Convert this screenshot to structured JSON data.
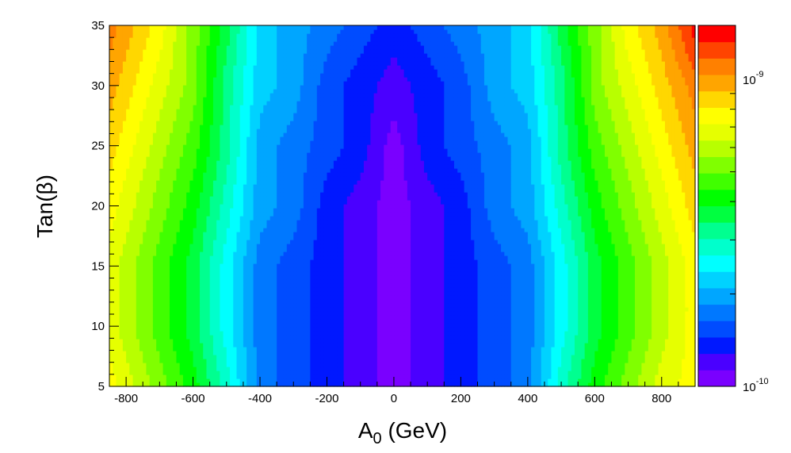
{
  "chart_data": {
    "type": "heatmap",
    "subtype": "filled-contour",
    "xlabel": {
      "base": "A",
      "sub": "0",
      "rest": " (GeV)"
    },
    "ylabel": "Tan(β)",
    "xlim": [
      -850,
      900
    ],
    "ylim": [
      5,
      35
    ],
    "x_ticks": [
      "-800",
      "-600",
      "-400",
      "-200",
      "0",
      "200",
      "400",
      "600",
      "800"
    ],
    "y_ticks": [
      "5",
      "10",
      "15",
      "20",
      "25",
      "30",
      "35"
    ],
    "colorbar": {
      "scale": "log",
      "range": [
        1e-10,
        1.5e-09
      ],
      "labels": [
        {
          "value": 1e-09,
          "base": "10",
          "exp": "-9"
        },
        {
          "value": 1e-10,
          "base": "10",
          "exp": "-10"
        }
      ],
      "colors": [
        "#7a00ff",
        "#4a00ff",
        "#0018ff",
        "#004cff",
        "#0078ff",
        "#00a6ff",
        "#00d2ff",
        "#00ffff",
        "#00ffcc",
        "#00ff90",
        "#00ff40",
        "#00ff00",
        "#40ff00",
        "#80ff00",
        "#b8ff00",
        "#e6ff00",
        "#ffff00",
        "#ffd700",
        "#ffa500",
        "#ff8000",
        "#ff4400",
        "#ff0000"
      ]
    },
    "x": [
      -850,
      -800,
      -700,
      -600,
      -500,
      -400,
      -300,
      -200,
      -100,
      0,
      100,
      200,
      300,
      400,
      500,
      600,
      700,
      800,
      900
    ],
    "y": [
      5,
      10,
      15,
      20,
      25,
      30,
      35
    ],
    "z_level_index": [
      [
        16,
        15,
        13,
        11,
        8,
        4,
        3,
        2,
        1,
        0,
        1,
        2,
        3,
        4,
        8,
        11,
        13,
        15,
        16
      ],
      [
        15,
        14,
        12,
        10,
        7,
        4,
        3,
        2,
        1,
        0,
        1,
        2,
        3,
        4,
        7,
        10,
        12,
        14,
        16
      ],
      [
        15,
        14,
        12,
        10,
        7,
        4,
        3,
        2,
        1,
        0,
        1,
        2,
        3,
        4,
        7,
        10,
        12,
        14,
        16
      ],
      [
        16,
        15,
        13,
        11,
        8,
        5,
        4,
        2,
        1,
        0,
        1,
        2,
        4,
        5,
        8,
        11,
        13,
        15,
        17
      ],
      [
        17,
        16,
        14,
        12,
        9,
        5,
        4,
        3,
        2,
        0,
        2,
        3,
        4,
        5,
        9,
        12,
        14,
        16,
        18
      ],
      [
        18,
        17,
        15,
        13,
        9,
        6,
        5,
        3,
        2,
        1,
        2,
        3,
        5,
        6,
        9,
        13,
        15,
        17,
        19
      ],
      [
        19,
        18,
        16,
        13,
        10,
        6,
        5,
        4,
        3,
        2,
        3,
        4,
        5,
        6,
        10,
        13,
        16,
        18,
        21
      ]
    ]
  }
}
